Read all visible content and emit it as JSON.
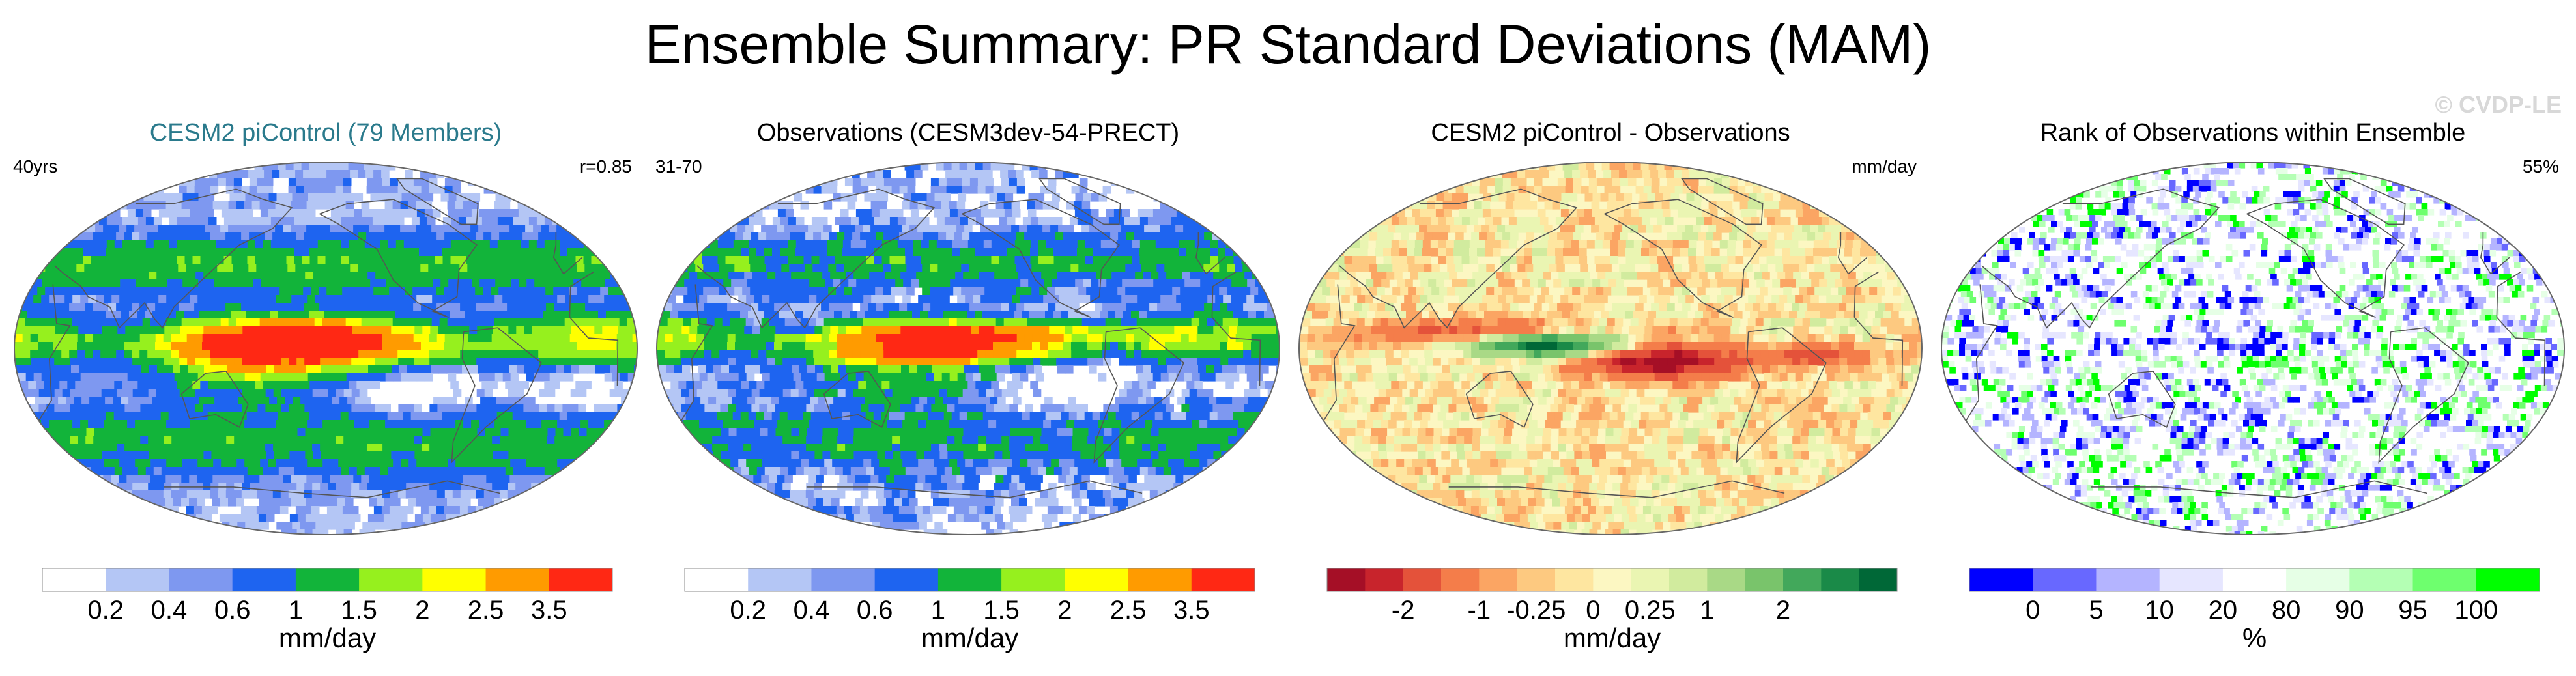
{
  "title": "Ensemble Summary: PR Standard Deviations (MAM)",
  "watermark": "© CVDP-LE",
  "chart_data": [
    {
      "type": "heatmap",
      "title": "CESM2 piControl (79 Members)",
      "corner_left": "40yrs",
      "corner_right": "r=0.85",
      "units": "mm/day",
      "levels": [
        "0.2",
        "0.4",
        "0.6",
        "1",
        "1.5",
        "2",
        "2.5",
        "3.5"
      ],
      "colors": [
        "#ffffff",
        "#b4c6f5",
        "#7e98f0",
        "#1e64f0",
        "#12b43a",
        "#96f01e",
        "#ffff00",
        "#ff9b00",
        "#ff2814"
      ],
      "ramp": "#ffffff",
      "field": "precip_sd_model"
    },
    {
      "type": "heatmap",
      "title": "Observations (CESM3dev-54-PRECT)",
      "corner_left": "31-70",
      "corner_right": "",
      "units": "mm/day",
      "levels": [
        "0.2",
        "0.4",
        "0.6",
        "1",
        "1.5",
        "2",
        "2.5",
        "3.5"
      ],
      "colors": [
        "#ffffff",
        "#b4c6f5",
        "#7e98f0",
        "#1e64f0",
        "#12b43a",
        "#96f01e",
        "#ffff00",
        "#ff9b00",
        "#ff2814"
      ],
      "field": "precip_sd_obs"
    },
    {
      "type": "heatmap",
      "title": "CESM2 piControl - Observations",
      "corner_left": "",
      "corner_right": "mm/day",
      "units": "mm/day",
      "levels": [
        "-2",
        "-1",
        "-0.25",
        "0",
        "0.25",
        "1",
        "2"
      ],
      "colors": [
        "#a50f26",
        "#c8242c",
        "#e4523a",
        "#f47d4a",
        "#fba563",
        "#fdc980",
        "#fee6a0",
        "#fcf7c2",
        "#eaf5b2",
        "#d1eb9e",
        "#a9d986",
        "#79c46b",
        "#42a85b",
        "#1a8a48",
        "#006837"
      ],
      "field": "precip_sd_diff"
    },
    {
      "type": "heatmap",
      "title": "Rank of Observations within Ensemble",
      "corner_left": "",
      "corner_right": "55%",
      "units": "%",
      "levels": [
        "0",
        "5",
        "10",
        "20",
        "80",
        "90",
        "95",
        "100"
      ],
      "colors": [
        "#0000ff",
        "#6868ff",
        "#b4b4ff",
        "#e6e6ff",
        "#ffffff",
        "#e6ffe6",
        "#b4ffb4",
        "#6eff6e",
        "#00ff00"
      ],
      "field": "obs_rank"
    }
  ]
}
